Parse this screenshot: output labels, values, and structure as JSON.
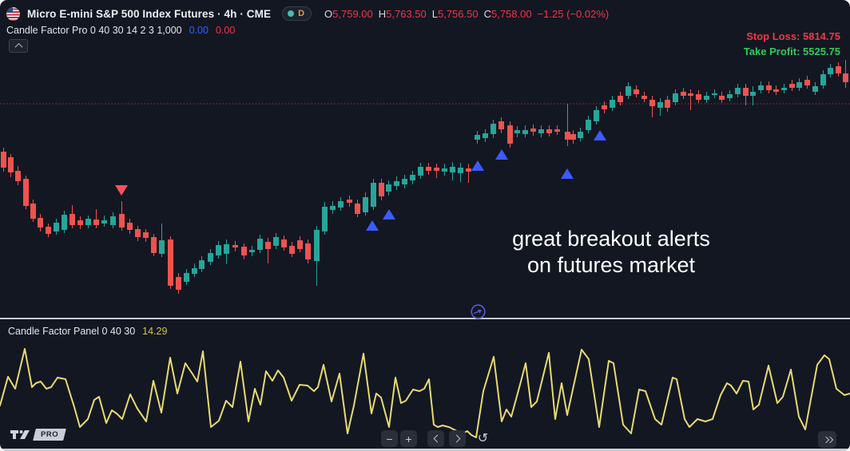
{
  "header": {
    "title": "Micro E-mini S&P 500 Index Futures · 4h · CME",
    "flag_icon": "us-flag-icon",
    "interval_badge": "D",
    "ohlc": {
      "o_label": "O",
      "o": "5,759.00",
      "h_label": "H",
      "h": "5,763.50",
      "l_label": "L",
      "l": "5,756.50",
      "c_label": "C",
      "c": "5,758.00",
      "change": "−1.25 (−0.02%)"
    },
    "indicator": {
      "name": "Candle Factor Pro",
      "params": "0 40 30 14 2 3 1,000",
      "value_blue": "0.00",
      "value_red": "0.00"
    }
  },
  "alerts": {
    "stop_loss_text": "Stop Loss: 5814.75",
    "take_profit_text": "Take Profit: 5525.75"
  },
  "caption": {
    "line1": "great breakout alerts",
    "line2": "on futures market"
  },
  "lower_panel": {
    "name": "Candle Factor Panel",
    "params": "0 40 30",
    "value": "14.29"
  },
  "logo": {
    "pro_label": "PRO"
  },
  "toolbar": {
    "zoom_out": "−",
    "zoom_in": "+",
    "reset": "↺"
  },
  "colors": {
    "background": "#131722",
    "candle_up": "#26a69a",
    "candle_down": "#ef5350",
    "buy_marker": "#3d5afe",
    "sell_marker": "#f7525f",
    "price_line": "#9c3039",
    "oscillator": "#e8da70",
    "value_red": "#f23645",
    "value_blue": "#2962ff",
    "take_profit_green": "#30cc5a",
    "panel_value_yellow": "#d5c73e"
  },
  "chart_data": {
    "type": "candlestick",
    "units": "px",
    "price_pane": {
      "price_line_y": 130,
      "candles": [
        [
          4,
          185,
          190,
          210,
          215,
          0
        ],
        [
          13,
          193,
          197,
          216,
          222,
          0
        ],
        [
          22,
          208,
          214,
          227,
          232,
          0
        ],
        [
          32,
          220,
          224,
          258,
          262,
          0
        ],
        [
          41,
          250,
          255,
          274,
          278,
          0
        ],
        [
          50,
          268,
          273,
          285,
          290,
          0
        ],
        [
          60,
          280,
          284,
          293,
          297,
          0
        ],
        [
          70,
          274,
          279,
          290,
          294,
          1
        ],
        [
          80,
          264,
          269,
          288,
          292,
          1
        ],
        [
          90,
          257,
          268,
          282,
          286,
          0
        ],
        [
          100,
          271,
          276,
          282,
          287,
          0
        ],
        [
          110,
          270,
          274,
          282,
          286,
          1
        ],
        [
          120,
          262,
          275,
          282,
          286,
          0
        ],
        [
          130,
          270,
          276,
          280,
          284,
          1
        ],
        [
          141,
          266,
          271,
          282,
          286,
          1
        ],
        [
          152,
          252,
          268,
          285,
          289,
          0
        ],
        [
          162,
          274,
          279,
          288,
          293,
          0
        ],
        [
          172,
          283,
          287,
          297,
          302,
          0
        ],
        [
          182,
          287,
          291,
          298,
          303,
          0
        ],
        [
          192,
          293,
          297,
          317,
          321,
          0
        ],
        [
          202,
          280,
          301,
          318,
          322,
          1
        ],
        [
          213,
          296,
          300,
          358,
          362,
          0
        ],
        [
          223,
          342,
          347,
          363,
          368,
          0
        ],
        [
          233,
          337,
          342,
          353,
          357,
          1
        ],
        [
          243,
          330,
          336,
          343,
          347,
          1
        ],
        [
          252,
          321,
          326,
          337,
          341,
          1
        ],
        [
          263,
          312,
          317,
          328,
          332,
          1
        ],
        [
          273,
          302,
          307,
          320,
          324,
          1
        ],
        [
          283,
          300,
          306,
          318,
          331,
          1
        ],
        [
          294,
          302,
          307,
          310,
          315,
          0
        ],
        [
          305,
          305,
          309,
          320,
          325,
          0
        ],
        [
          315,
          308,
          313,
          316,
          321,
          1
        ],
        [
          325,
          294,
          299,
          313,
          317,
          1
        ],
        [
          335,
          298,
          303,
          312,
          330,
          0
        ],
        [
          345,
          292,
          297,
          308,
          312,
          1
        ],
        [
          355,
          295,
          300,
          310,
          314,
          0
        ],
        [
          365,
          303,
          308,
          318,
          322,
          0
        ],
        [
          375,
          296,
          301,
          312,
          316,
          0
        ],
        [
          385,
          300,
          305,
          325,
          330,
          0
        ],
        [
          396,
          283,
          288,
          327,
          358,
          1
        ],
        [
          406,
          253,
          259,
          290,
          294,
          1
        ],
        [
          416,
          252,
          258,
          263,
          268,
          1
        ],
        [
          426,
          247,
          252,
          260,
          264,
          1
        ],
        [
          437,
          245,
          250,
          254,
          259,
          0
        ],
        [
          447,
          250,
          255,
          268,
          272,
          0
        ],
        [
          457,
          241,
          247,
          266,
          270,
          1
        ],
        [
          467,
          224,
          229,
          259,
          263,
          1
        ],
        [
          477,
          224,
          229,
          246,
          251,
          0
        ],
        [
          486,
          226,
          231,
          240,
          245,
          1
        ],
        [
          496,
          221,
          227,
          233,
          238,
          1
        ],
        [
          506,
          219,
          224,
          231,
          236,
          1
        ],
        [
          516,
          214,
          219,
          226,
          231,
          1
        ],
        [
          526,
          204,
          209,
          220,
          224,
          1
        ],
        [
          536,
          204,
          209,
          214,
          219,
          0
        ],
        [
          546,
          205,
          210,
          214,
          223,
          0
        ],
        [
          556,
          205,
          211,
          215,
          220,
          1
        ],
        [
          566,
          203,
          209,
          216,
          226,
          1
        ],
        [
          576,
          204,
          210,
          217,
          228,
          1
        ],
        [
          586,
          205,
          211,
          215,
          229,
          0
        ],
        [
          597,
          164,
          169,
          175,
          180,
          1
        ],
        [
          607,
          162,
          167,
          173,
          178,
          1
        ],
        [
          617,
          150,
          155,
          168,
          173,
          1
        ],
        [
          627,
          147,
          152,
          162,
          167,
          0
        ],
        [
          638,
          152,
          157,
          180,
          185,
          0
        ],
        [
          647,
          158,
          163,
          167,
          172,
          1
        ],
        [
          657,
          157,
          163,
          168,
          172,
          1
        ],
        [
          667,
          156,
          161,
          165,
          170,
          0
        ],
        [
          677,
          157,
          162,
          167,
          172,
          1
        ],
        [
          687,
          157,
          162,
          167,
          171,
          0
        ],
        [
          697,
          157,
          162,
          165,
          169,
          0
        ],
        [
          710,
          130,
          165,
          175,
          183,
          0
        ],
        [
          717,
          163,
          168,
          175,
          180,
          0
        ],
        [
          726,
          160,
          165,
          173,
          177,
          1
        ],
        [
          736,
          145,
          150,
          163,
          167,
          1
        ],
        [
          746,
          133,
          138,
          152,
          156,
          1
        ],
        [
          756,
          127,
          132,
          137,
          142,
          0
        ],
        [
          766,
          120,
          125,
          135,
          139,
          1
        ],
        [
          776,
          115,
          120,
          128,
          132,
          0
        ],
        [
          786,
          103,
          108,
          120,
          124,
          1
        ],
        [
          796,
          107,
          112,
          118,
          122,
          0
        ],
        [
          806,
          115,
          120,
          124,
          128,
          0
        ],
        [
          816,
          120,
          125,
          133,
          147,
          0
        ],
        [
          826,
          123,
          128,
          135,
          145,
          1
        ],
        [
          835,
          120,
          125,
          135,
          140,
          0
        ],
        [
          845,
          112,
          117,
          128,
          132,
          1
        ],
        [
          855,
          110,
          115,
          120,
          124,
          0
        ],
        [
          864,
          112,
          117,
          120,
          138,
          0
        ],
        [
          874,
          113,
          118,
          125,
          129,
          0
        ],
        [
          884,
          115,
          120,
          125,
          129,
          1
        ],
        [
          894,
          112,
          117,
          119,
          123,
          1
        ],
        [
          903,
          115,
          120,
          125,
          129,
          0
        ],
        [
          913,
          113,
          118,
          123,
          127,
          1
        ],
        [
          923,
          105,
          110,
          118,
          122,
          1
        ],
        [
          933,
          105,
          110,
          120,
          132,
          0
        ],
        [
          942,
          108,
          115,
          120,
          132,
          1
        ],
        [
          952,
          102,
          107,
          113,
          117,
          1
        ],
        [
          962,
          102,
          107,
          113,
          117,
          0
        ],
        [
          971,
          107,
          112,
          115,
          119,
          0
        ],
        [
          981,
          105,
          110,
          113,
          117,
          1
        ],
        [
          991,
          100,
          105,
          110,
          114,
          0
        ],
        [
          1000,
          98,
          103,
          110,
          114,
          1
        ],
        [
          1010,
          95,
          100,
          107,
          111,
          0
        ],
        [
          1020,
          103,
          108,
          115,
          119,
          1
        ],
        [
          1030,
          88,
          93,
          107,
          111,
          1
        ],
        [
          1039,
          80,
          85,
          93,
          97,
          1
        ],
        [
          1049,
          78,
          83,
          92,
          96,
          0
        ],
        [
          1058,
          75,
          92,
          103,
          110,
          0
        ]
      ],
      "markers": {
        "sell": [
          [
            152,
            232
          ]
        ],
        "buy": [
          [
            466,
            289
          ],
          [
            487,
            275
          ],
          [
            598,
            214
          ],
          [
            628,
            200
          ],
          [
            710,
            224
          ],
          [
            751,
            176
          ]
        ]
      }
    },
    "oscillator_pane": {
      "type": "line",
      "points": [
        [
          0,
          508
        ],
        [
          10,
          472
        ],
        [
          19,
          487
        ],
        [
          31,
          437
        ],
        [
          40,
          485
        ],
        [
          45,
          480
        ],
        [
          51,
          478
        ],
        [
          58,
          487
        ],
        [
          64,
          485
        ],
        [
          72,
          473
        ],
        [
          82,
          475
        ],
        [
          93,
          510
        ],
        [
          100,
          535
        ],
        [
          110,
          525
        ],
        [
          118,
          501
        ],
        [
          124,
          497
        ],
        [
          133,
          530
        ],
        [
          140,
          514
        ],
        [
          146,
          518
        ],
        [
          153,
          525
        ],
        [
          163,
          494
        ],
        [
          172,
          512
        ],
        [
          183,
          528
        ],
        [
          192,
          477
        ],
        [
          202,
          517
        ],
        [
          213,
          448
        ],
        [
          222,
          493
        ],
        [
          232,
          455
        ],
        [
          240,
          467
        ],
        [
          247,
          478
        ],
        [
          254,
          440
        ],
        [
          264,
          535
        ],
        [
          274,
          527
        ],
        [
          283,
          502
        ],
        [
          291,
          510
        ],
        [
          301,
          453
        ],
        [
          311,
          528
        ],
        [
          319,
          487
        ],
        [
          326,
          507
        ],
        [
          333,
          465
        ],
        [
          341,
          477
        ],
        [
          348,
          464
        ],
        [
          355,
          473
        ],
        [
          365,
          502
        ],
        [
          375,
          482
        ],
        [
          385,
          483
        ],
        [
          393,
          490
        ],
        [
          398,
          485
        ],
        [
          405,
          457
        ],
        [
          415,
          503
        ],
        [
          425,
          468
        ],
        [
          435,
          543
        ],
        [
          443,
          508
        ],
        [
          455,
          443
        ],
        [
          465,
          518
        ],
        [
          471,
          493
        ],
        [
          477,
          498
        ],
        [
          487,
          535
        ],
        [
          495,
          473
        ],
        [
          502,
          505
        ],
        [
          508,
          502
        ],
        [
          517,
          488
        ],
        [
          525,
          490
        ],
        [
          531,
          487
        ],
        [
          537,
          475
        ],
        [
          543,
          532
        ],
        [
          548,
          535
        ],
        [
          554,
          533
        ],
        [
          562,
          535
        ],
        [
          572,
          540
        ],
        [
          579,
          543
        ],
        [
          585,
          540
        ],
        [
          590,
          545
        ],
        [
          596,
          548
        ],
        [
          605,
          490
        ],
        [
          618,
          447
        ],
        [
          628,
          528
        ],
        [
          634,
          513
        ],
        [
          640,
          522
        ],
        [
          652,
          478
        ],
        [
          658,
          455
        ],
        [
          665,
          510
        ],
        [
          672,
          503
        ],
        [
          687,
          442
        ],
        [
          695,
          525
        ],
        [
          703,
          480
        ],
        [
          710,
          520
        ],
        [
          728,
          438
        ],
        [
          737,
          450
        ],
        [
          750,
          535
        ],
        [
          762,
          452
        ],
        [
          768,
          455
        ],
        [
          780,
          532
        ],
        [
          790,
          543
        ],
        [
          800,
          488
        ],
        [
          808,
          490
        ],
        [
          820,
          525
        ],
        [
          828,
          532
        ],
        [
          842,
          473
        ],
        [
          847,
          475
        ],
        [
          857,
          525
        ],
        [
          863,
          535
        ],
        [
          873,
          525
        ],
        [
          883,
          528
        ],
        [
          892,
          525
        ],
        [
          902,
          495
        ],
        [
          910,
          480
        ],
        [
          915,
          483
        ],
        [
          922,
          493
        ],
        [
          930,
          477
        ],
        [
          937,
          478
        ],
        [
          943,
          513
        ],
        [
          950,
          507
        ],
        [
          962,
          458
        ],
        [
          973,
          505
        ],
        [
          980,
          497
        ],
        [
          990,
          463
        ],
        [
          1000,
          522
        ],
        [
          1008,
          538
        ],
        [
          1023,
          457
        ],
        [
          1032,
          445
        ],
        [
          1038,
          450
        ],
        [
          1047,
          487
        ],
        [
          1057,
          495
        ],
        [
          1064,
          493
        ]
      ]
    }
  }
}
